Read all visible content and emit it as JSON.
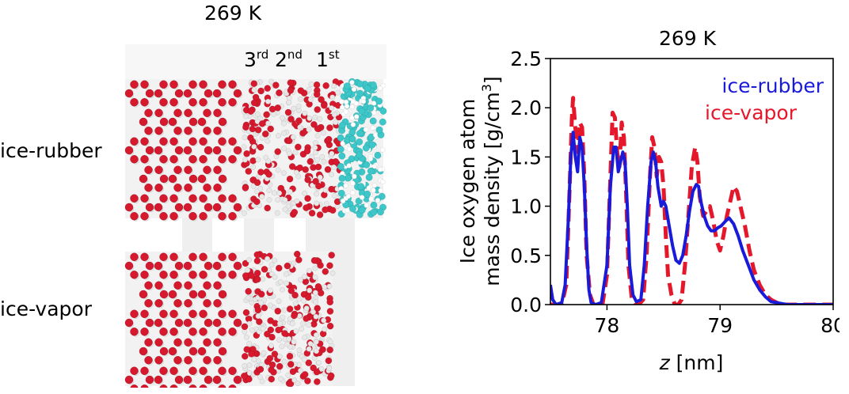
{
  "left_panel": {
    "title": "269 K",
    "layers": [
      {
        "num": "3",
        "sup": "rd"
      },
      {
        "num": "2",
        "sup": "nd"
      },
      {
        "num": "1",
        "sup": "st"
      }
    ],
    "rows": [
      {
        "label": "ice-rubber"
      },
      {
        "label": "ice-vapor"
      }
    ],
    "colors": {
      "oxygen": "#d7192e",
      "hydrogen": "#e8e8e8",
      "rubber": "#3ec7c9",
      "band": "#efefef"
    }
  },
  "chart_data": {
    "type": "line",
    "title": "269 K",
    "xlabel_italic": "z",
    "xlabel_unit": " [nm]",
    "ylabel_line1": "Ice oxygen atom",
    "ylabel_line2": "mass density [g/cm",
    "ylabel_sup": "3",
    "ylabel_close": "]",
    "xlim": [
      77.5,
      80.0
    ],
    "ylim": [
      0.0,
      2.5
    ],
    "xticks": [
      78,
      79,
      80
    ],
    "yticks": [
      0.0,
      0.5,
      1.0,
      1.5,
      2.0,
      2.5
    ],
    "xtick_labels": [
      "78",
      "79",
      "80"
    ],
    "ytick_labels": [
      "0.0",
      "0.5",
      "1.0",
      "1.5",
      "2.0",
      "2.5"
    ],
    "legend_position": "top-right",
    "series": [
      {
        "name": "ice-rubber",
        "color": "#1a1adb",
        "style": "solid",
        "x": [
          77.5,
          77.52,
          77.55,
          77.6,
          77.63,
          77.66,
          77.68,
          77.7,
          77.72,
          77.74,
          77.76,
          77.78,
          77.8,
          77.82,
          77.84,
          77.86,
          77.9,
          77.95,
          78.0,
          78.03,
          78.06,
          78.08,
          78.1,
          78.12,
          78.14,
          78.16,
          78.18,
          78.2,
          78.23,
          78.26,
          78.3,
          78.33,
          78.36,
          78.39,
          78.41,
          78.43,
          78.45,
          78.48,
          78.5,
          78.52,
          78.55,
          78.58,
          78.61,
          78.64,
          78.67,
          78.7,
          78.73,
          78.76,
          78.79,
          78.81,
          78.83,
          78.86,
          78.89,
          78.92,
          78.95,
          78.98,
          79.01,
          79.05,
          79.08,
          79.12,
          79.16,
          79.2,
          79.25,
          79.3,
          79.35,
          79.4,
          79.45,
          79.5,
          79.55,
          79.6,
          79.7,
          79.8,
          79.9,
          80.0
        ],
        "y": [
          0.2,
          0.05,
          0.0,
          0.02,
          0.2,
          0.9,
          1.5,
          1.75,
          1.5,
          1.35,
          1.7,
          1.6,
          1.2,
          0.6,
          0.15,
          0.02,
          0.0,
          0.02,
          0.4,
          1.2,
          1.6,
          1.6,
          1.35,
          1.45,
          1.55,
          1.45,
          1.0,
          0.4,
          0.1,
          0.03,
          0.05,
          0.4,
          1.0,
          1.45,
          1.55,
          1.45,
          1.2,
          1.0,
          1.05,
          1.0,
          0.8,
          0.6,
          0.45,
          0.42,
          0.5,
          0.7,
          0.95,
          1.15,
          1.22,
          1.2,
          1.05,
          0.9,
          0.8,
          0.75,
          0.75,
          0.78,
          0.8,
          0.85,
          0.88,
          0.82,
          0.7,
          0.55,
          0.4,
          0.25,
          0.15,
          0.08,
          0.03,
          0.02,
          0.01,
          0.0,
          0.0,
          0.0,
          0.0,
          0.0
        ]
      },
      {
        "name": "ice-vapor",
        "color": "#e5182b",
        "style": "dashed",
        "x": [
          77.5,
          77.55,
          77.6,
          77.64,
          77.67,
          77.69,
          77.7,
          77.72,
          77.74,
          77.76,
          77.78,
          77.8,
          77.82,
          77.85,
          77.88,
          77.92,
          77.96,
          78.0,
          78.03,
          78.05,
          78.07,
          78.09,
          78.11,
          78.13,
          78.15,
          78.17,
          78.19,
          78.22,
          78.25,
          78.28,
          78.32,
          78.35,
          78.38,
          78.4,
          78.42,
          78.44,
          78.46,
          78.48,
          78.5,
          78.52,
          78.54,
          78.57,
          78.6,
          78.63,
          78.66,
          78.69,
          78.72,
          78.75,
          78.78,
          78.8,
          78.82,
          78.85,
          78.88,
          78.91,
          78.94,
          78.97,
          79.0,
          79.03,
          79.06,
          79.09,
          79.12,
          79.15,
          79.18,
          79.22,
          79.26,
          79.3,
          79.35,
          79.4,
          79.45,
          79.5,
          79.55,
          79.6,
          79.7,
          79.8,
          79.9,
          80.0
        ],
        "y": [
          0.0,
          0.0,
          0.0,
          0.2,
          1.2,
          1.9,
          2.1,
          1.8,
          1.55,
          1.85,
          1.8,
          1.3,
          0.5,
          0.1,
          0.0,
          0.0,
          0.0,
          0.3,
          1.3,
          1.95,
          1.9,
          1.55,
          1.4,
          1.85,
          1.7,
          1.1,
          0.4,
          0.05,
          0.0,
          0.0,
          0.05,
          0.5,
          1.3,
          1.7,
          1.6,
          1.3,
          1.5,
          1.45,
          1.2,
          0.7,
          0.3,
          0.1,
          0.0,
          0.0,
          0.05,
          0.4,
          0.9,
          1.4,
          1.6,
          1.45,
          1.1,
          0.9,
          0.95,
          1.0,
          0.85,
          0.65,
          0.55,
          0.7,
          0.9,
          1.05,
          1.2,
          1.15,
          1.0,
          0.8,
          0.55,
          0.35,
          0.2,
          0.1,
          0.05,
          0.02,
          0.0,
          0.0,
          0.0,
          0.0,
          0.0,
          0.0
        ]
      }
    ]
  }
}
